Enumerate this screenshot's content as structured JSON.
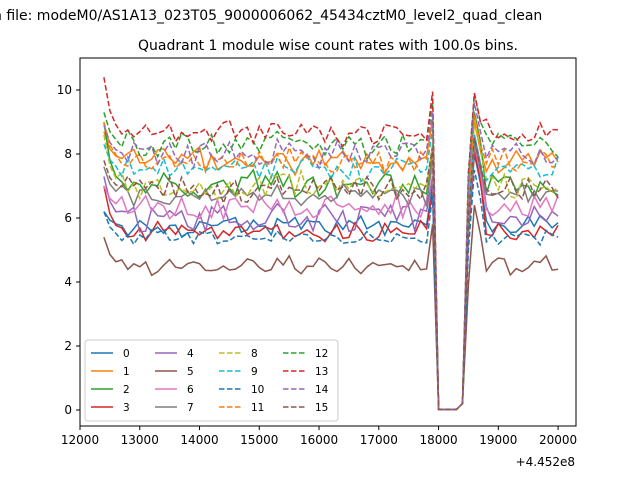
{
  "chart_data": {
    "type": "line",
    "suptitle": "n file: modeM0/AS1A13_023T05_9000006062_45434cztM0_level2_quad_clean",
    "title": "Quadrant 1 module wise count rates with 100.0s bins.",
    "xlabel": "",
    "ylabel": "",
    "x_offset_label": "+4.452e8",
    "xlim": [
      12000,
      20300
    ],
    "ylim": [
      -0.5,
      11
    ],
    "x_ticks": [
      12000,
      13000,
      14000,
      15000,
      16000,
      17000,
      18000,
      19000,
      20000
    ],
    "x_tick_labels": [
      "12000",
      "13000",
      "14000",
      "15000",
      "16000",
      "17000",
      "18000",
      "19000",
      "20000"
    ],
    "y_ticks": [
      0,
      2,
      4,
      6,
      8,
      10
    ],
    "y_tick_labels": [
      "0",
      "2",
      "4",
      "6",
      "8",
      "10"
    ],
    "grid": false,
    "legend_placement": "lower-left",
    "legend_columns": 4,
    "x": [
      12400,
      12500,
      12600,
      12700,
      12800,
      12900,
      13000,
      13100,
      13200,
      13300,
      13400,
      13500,
      13600,
      13700,
      13800,
      13900,
      14000,
      14100,
      14200,
      14300,
      14400,
      14500,
      14600,
      14700,
      14800,
      14900,
      15000,
      15100,
      15200,
      15300,
      15400,
      15500,
      15600,
      15700,
      15800,
      15900,
      16000,
      16100,
      16200,
      16300,
      16400,
      16500,
      16600,
      16700,
      16800,
      16900,
      17000,
      17100,
      17200,
      17300,
      17400,
      17500,
      17600,
      17700,
      17800,
      17900,
      18000,
      18100,
      18200,
      18300,
      18400,
      18500,
      18600,
      18700,
      18800,
      18900,
      19000,
      19100,
      19200,
      19300,
      19400,
      19500,
      19600,
      19700,
      19800,
      19900,
      20000
    ],
    "gap_range": [
      17950,
      18400
    ],
    "series": [
      {
        "name": "0",
        "color": "#1f77b4",
        "dash": "solid",
        "base": 5.75,
        "amp": 0.25,
        "start": 6.2,
        "peak": 8.0,
        "s": 1
      },
      {
        "name": "1",
        "color": "#ff7f0e",
        "dash": "solid",
        "base": 7.8,
        "amp": 0.35,
        "start": 8.7,
        "peak": 9.0,
        "s": 2
      },
      {
        "name": "2",
        "color": "#2ca02c",
        "dash": "solid",
        "base": 7.0,
        "amp": 0.4,
        "start": 9.0,
        "peak": 9.3,
        "s": 3
      },
      {
        "name": "3",
        "color": "#d62728",
        "dash": "solid",
        "base": 5.55,
        "amp": 0.3,
        "start": 7.0,
        "peak": 8.1,
        "s": 4
      },
      {
        "name": "4",
        "color": "#9467bd",
        "dash": "solid",
        "base": 6.0,
        "amp": 0.35,
        "start": 7.3,
        "peak": 8.6,
        "s": 5
      },
      {
        "name": "5",
        "color": "#8c564b",
        "dash": "solid",
        "base": 4.5,
        "amp": 0.25,
        "start": 5.4,
        "peak": 6.4,
        "s": 6
      },
      {
        "name": "6",
        "color": "#e377c2",
        "dash": "solid",
        "base": 6.35,
        "amp": 0.35,
        "start": 7.0,
        "peak": 8.3,
        "s": 7
      },
      {
        "name": "7",
        "color": "#7f7f7f",
        "dash": "solid",
        "base": 6.7,
        "amp": 0.3,
        "start": 7.6,
        "peak": 8.4,
        "s": 8
      },
      {
        "name": "8",
        "color": "#bcbd22",
        "dash": "dashed",
        "base": 7.0,
        "amp": 0.35,
        "start": 8.6,
        "peak": 9.0,
        "s": 9
      },
      {
        "name": "9",
        "color": "#17becf",
        "dash": "dashed",
        "base": 7.5,
        "amp": 0.3,
        "start": 8.3,
        "peak": 8.6,
        "s": 10
      },
      {
        "name": "10",
        "color": "#1f77b4",
        "dash": "dashed",
        "base": 5.4,
        "amp": 0.2,
        "start": 6.2,
        "peak": 7.5,
        "s": 11
      },
      {
        "name": "11",
        "color": "#ff7f0e",
        "dash": "dashed",
        "base": 7.8,
        "amp": 0.3,
        "start": 9.0,
        "peak": 9.2,
        "s": 12
      },
      {
        "name": "12",
        "color": "#2ca02c",
        "dash": "dashed",
        "base": 8.3,
        "amp": 0.35,
        "start": 9.3,
        "peak": 9.9,
        "s": 13
      },
      {
        "name": "13",
        "color": "#d62728",
        "dash": "dashed",
        "base": 8.65,
        "amp": 0.35,
        "start": 10.4,
        "peak": 9.9,
        "s": 14
      },
      {
        "name": "14",
        "color": "#9467bd",
        "dash": "dashed",
        "base": 8.0,
        "amp": 0.35,
        "start": 8.9,
        "peak": 9.6,
        "s": 15
      },
      {
        "name": "15",
        "color": "#8c564b",
        "dash": "dashed",
        "base": 6.9,
        "amp": 0.35,
        "start": 7.8,
        "peak": 8.5,
        "s": 16
      }
    ]
  }
}
